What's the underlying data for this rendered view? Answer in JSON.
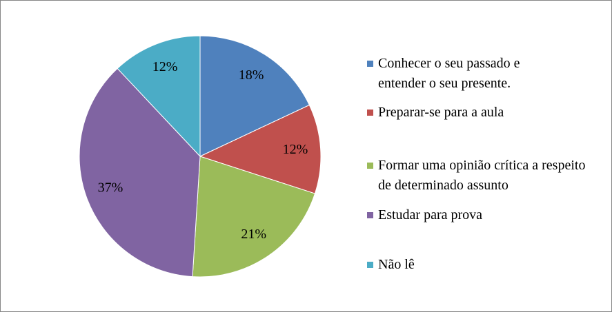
{
  "chart_data": {
    "type": "pie",
    "categories": [
      "Conhecer o seu passado e entender o seu presente.",
      "Preparar-se para a aula",
      "Formar uma opinião crítica a respeito de determinado assunto",
      "Estudar para prova",
      "Não lê"
    ],
    "values": [
      18,
      12,
      21,
      37,
      12
    ],
    "value_labels": [
      "18%",
      "12%",
      "21%",
      "37%",
      "12%"
    ],
    "colors": [
      "#4f81bd",
      "#c0504d",
      "#9bbb59",
      "#8064a2",
      "#4bacc6"
    ],
    "legend": "right"
  }
}
